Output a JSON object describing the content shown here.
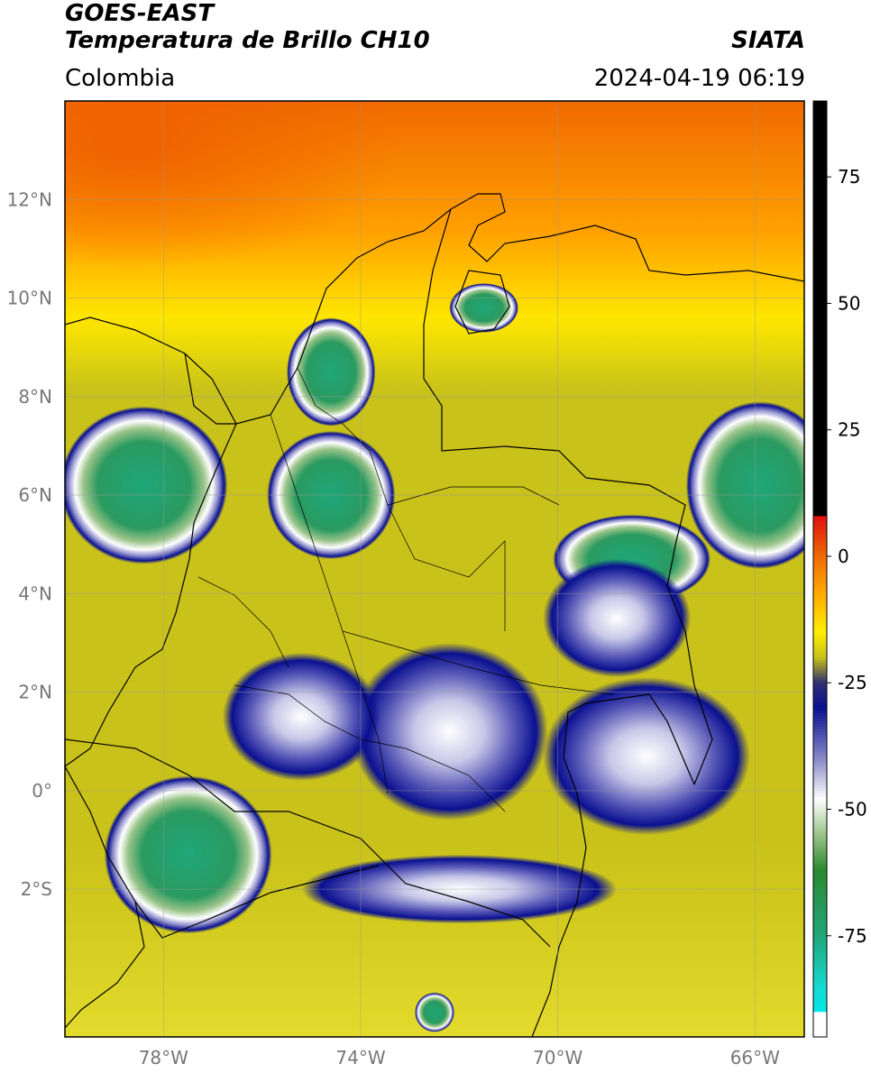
{
  "header": {
    "satellite": "GOES-EAST",
    "product": "Temperatura de Brillo CH10",
    "brand": "SIATA",
    "region": "Colombia",
    "timestamp": "2024-04-19 06:19"
  },
  "map": {
    "lon_range": [
      -80,
      -65
    ],
    "lat_range": [
      -5,
      14
    ],
    "lon_ticks": [
      {
        "value": -78,
        "label": "78°W"
      },
      {
        "value": -74,
        "label": "74°W"
      },
      {
        "value": -70,
        "label": "70°W"
      },
      {
        "value": -66,
        "label": "66°W"
      }
    ],
    "lat_ticks": [
      {
        "value": 12,
        "label": "12°N"
      },
      {
        "value": 10,
        "label": "10°N"
      },
      {
        "value": 8,
        "label": "8°N"
      },
      {
        "value": 6,
        "label": "6°N"
      },
      {
        "value": 4,
        "label": "4°N"
      },
      {
        "value": 2,
        "label": "2°N"
      },
      {
        "value": 0,
        "label": "0°"
      },
      {
        "value": -2,
        "label": "2°S"
      }
    ],
    "background_color": "#c9c21a",
    "cloud_features": [
      {
        "type": "cold_top",
        "lon": -78.4,
        "lat": 6.2,
        "rx_deg": 1.7,
        "ry_deg": 1.6
      },
      {
        "type": "cold_top",
        "lon": -74.6,
        "lat": 6.0,
        "rx_deg": 1.3,
        "ry_deg": 1.3
      },
      {
        "type": "cold_top",
        "lon": -74.6,
        "lat": 8.5,
        "rx_deg": 0.9,
        "ry_deg": 1.1
      },
      {
        "type": "cold_top",
        "lon": -71.5,
        "lat": 9.8,
        "rx_deg": 0.7,
        "ry_deg": 0.5
      },
      {
        "type": "cold_top",
        "lon": -65.9,
        "lat": 6.2,
        "rx_deg": 1.5,
        "ry_deg": 1.7
      },
      {
        "type": "cold_top",
        "lon": -68.5,
        "lat": 4.7,
        "rx_deg": 1.6,
        "ry_deg": 0.9
      },
      {
        "type": "cold_top",
        "lon": -77.5,
        "lat": -1.3,
        "rx_deg": 1.7,
        "ry_deg": 1.6
      },
      {
        "type": "convective",
        "lon": -68.2,
        "lat": 0.7,
        "rx_deg": 2.1,
        "ry_deg": 1.6
      },
      {
        "type": "convective",
        "lon": -72.2,
        "lat": 1.2,
        "rx_deg": 2.0,
        "ry_deg": 1.8
      },
      {
        "type": "convective",
        "lon": -75.2,
        "lat": 1.5,
        "rx_deg": 1.6,
        "ry_deg": 1.3
      },
      {
        "type": "convective",
        "lon": -72.0,
        "lat": -2.0,
        "rx_deg": 3.2,
        "ry_deg": 0.7
      },
      {
        "type": "convective",
        "lon": -68.8,
        "lat": 3.5,
        "rx_deg": 1.5,
        "ry_deg": 1.2
      },
      {
        "type": "cold_top",
        "lon": -72.5,
        "lat": -4.5,
        "rx_deg": 0.4,
        "ry_deg": 0.4
      }
    ]
  },
  "colorbar": {
    "min": -95,
    "max": 90,
    "ticks": [
      {
        "value": 75,
        "label": "75"
      },
      {
        "value": 50,
        "label": "50"
      },
      {
        "value": 25,
        "label": "25"
      },
      {
        "value": 0,
        "label": "0"
      },
      {
        "value": -25,
        "label": "-25"
      },
      {
        "value": -50,
        "label": "-50"
      },
      {
        "value": -75,
        "label": "-75"
      }
    ],
    "stops": [
      {
        "value": 90,
        "color": "#000000"
      },
      {
        "value": 8,
        "color": "#000000"
      },
      {
        "value": 7.9,
        "color": "#e01010"
      },
      {
        "value": 0,
        "color": "#f06a00"
      },
      {
        "value": -8,
        "color": "#ffb000"
      },
      {
        "value": -15,
        "color": "#ffee00"
      },
      {
        "value": -20,
        "color": "#c9c21a"
      },
      {
        "value": -25,
        "color": "#303070"
      },
      {
        "value": -30,
        "color": "#0a1090"
      },
      {
        "value": -40,
        "color": "#8888c8"
      },
      {
        "value": -48,
        "color": "#ffffff"
      },
      {
        "value": -55,
        "color": "#9bc48a"
      },
      {
        "value": -62,
        "color": "#2a8a30"
      },
      {
        "value": -75,
        "color": "#1fa77a"
      },
      {
        "value": -85,
        "color": "#18d8d0"
      },
      {
        "value": -90,
        "color": "#00e8e8"
      },
      {
        "value": -90.1,
        "color": "#ffffff"
      },
      {
        "value": -95,
        "color": "#ffffff"
      }
    ]
  }
}
